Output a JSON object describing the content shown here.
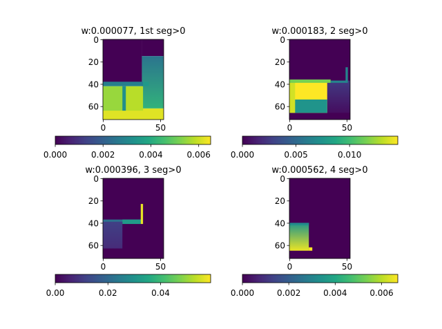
{
  "chart_data": [
    {
      "type": "heatmap",
      "title": "w:0.000077, 1st seg>0",
      "x_ticks": [
        "0",
        "50"
      ],
      "y_ticks": [
        "0",
        "20",
        "40",
        "60"
      ],
      "colorbar_ticks": [
        "0.000",
        "0.002",
        "0.004",
        "0.006"
      ],
      "colorbar_range": [
        0,
        0.0065
      ],
      "colormap": "viridis",
      "image_extent": {
        "width": 53,
        "height": 72
      },
      "regions": [
        {
          "x": [
            0,
            34
          ],
          "y": [
            0,
            40
          ],
          "value": 0
        },
        {
          "x": [
            34,
            53
          ],
          "y": [
            0,
            15
          ],
          "value": 0
        },
        {
          "x": [
            34,
            53
          ],
          "y": [
            15,
            62
          ],
          "value": 0.0025,
          "value_end": 0.0042,
          "gradient": "vertical"
        },
        {
          "x": [
            0,
            53
          ],
          "y": [
            62,
            72
          ],
          "value": 0.0062
        },
        {
          "x": [
            0,
            18
          ],
          "y": [
            42,
            64
          ],
          "value": 0.0055
        },
        {
          "x": [
            19,
            35
          ],
          "y": [
            42,
            64
          ],
          "value": 0.0058
        },
        {
          "x": [
            0,
            35
          ],
          "y": [
            38,
            42
          ],
          "value": 0.0028
        },
        {
          "x": [
            17,
            20
          ],
          "y": [
            42,
            64
          ],
          "value": 0.0032
        },
        {
          "x": [
            35,
            40
          ],
          "y": [
            38,
            42
          ],
          "value": 0.0035
        }
      ]
    },
    {
      "type": "heatmap",
      "title": "w:0.000183, 2 seg>0",
      "x_ticks": [
        "0",
        "50"
      ],
      "y_ticks": [
        "0",
        "20",
        "40",
        "60"
      ],
      "colorbar_ticks": [
        "0.000",
        "0.005",
        "0.010"
      ],
      "colorbar_range": [
        0,
        0.0145
      ],
      "colormap": "viridis",
      "image_extent": {
        "width": 53,
        "height": 72
      },
      "regions": [
        {
          "x": [
            0,
            53
          ],
          "y": [
            0,
            72
          ],
          "value": 0
        },
        {
          "x": [
            33,
            53
          ],
          "y": [
            37,
            66
          ],
          "value": 0.0025,
          "value_end": 0.0005,
          "gradient": "vertical"
        },
        {
          "x": [
            0,
            33
          ],
          "y": [
            37,
            66
          ],
          "value": 0.0145
        },
        {
          "x": [
            0,
            33
          ],
          "y": [
            54,
            66
          ],
          "value": 0.0075
        },
        {
          "x": [
            0,
            5
          ],
          "y": [
            37,
            66
          ],
          "value": 0.0135
        },
        {
          "x": [
            0,
            36
          ],
          "y": [
            36,
            39
          ],
          "value": 0.0115
        },
        {
          "x": [
            36,
            50
          ],
          "y": [
            37,
            39
          ],
          "value": 0.0065
        },
        {
          "x": [
            49,
            51
          ],
          "y": [
            25,
            39
          ],
          "value": 0.0065
        }
      ]
    },
    {
      "type": "heatmap",
      "title": "w:0.000396, 3 seg>0",
      "x_ticks": [
        "0",
        "50"
      ],
      "y_ticks": [
        "0",
        "20",
        "40",
        "60"
      ],
      "colorbar_ticks": [
        "0.00",
        "0.02",
        "0.04"
      ],
      "colorbar_range": [
        0,
        0.059
      ],
      "colormap": "viridis",
      "image_extent": {
        "width": 53,
        "height": 72
      },
      "regions": [
        {
          "x": [
            0,
            53
          ],
          "y": [
            0,
            72
          ],
          "value": 0
        },
        {
          "x": [
            0,
            17
          ],
          "y": [
            38,
            63
          ],
          "value": 0.0115,
          "value_end": 0.0075,
          "gradient": "vertical"
        },
        {
          "x": [
            0,
            34
          ],
          "y": [
            37,
            39
          ],
          "value": 0.022
        },
        {
          "x": [
            17,
            33
          ],
          "y": [
            37,
            41
          ],
          "value": 0.032
        },
        {
          "x": [
            33,
            35
          ],
          "y": [
            23,
            41
          ],
          "value": 0.057
        }
      ]
    },
    {
      "type": "heatmap",
      "title": "w:0.000562, 4 seg>0",
      "x_ticks": [
        "0",
        "50"
      ],
      "y_ticks": [
        "0",
        "20",
        "40",
        "60"
      ],
      "colorbar_ticks": [
        "0.000",
        "0.002",
        "0.004",
        "0.006"
      ],
      "colorbar_range": [
        0,
        0.0067
      ],
      "colormap": "viridis",
      "image_extent": {
        "width": 53,
        "height": 72
      },
      "regions": [
        {
          "x": [
            0,
            53
          ],
          "y": [
            0,
            72
          ],
          "value": 0
        },
        {
          "x": [
            0,
            17
          ],
          "y": [
            40,
            65
          ],
          "value": 0.0035,
          "value_end": 0.0065,
          "gradient": "vertical"
        },
        {
          "x": [
            0,
            17
          ],
          "y": [
            40,
            42
          ],
          "value": 0.0032
        },
        {
          "x": [
            17,
            20
          ],
          "y": [
            62,
            65
          ],
          "value": 0.0067
        }
      ]
    }
  ]
}
